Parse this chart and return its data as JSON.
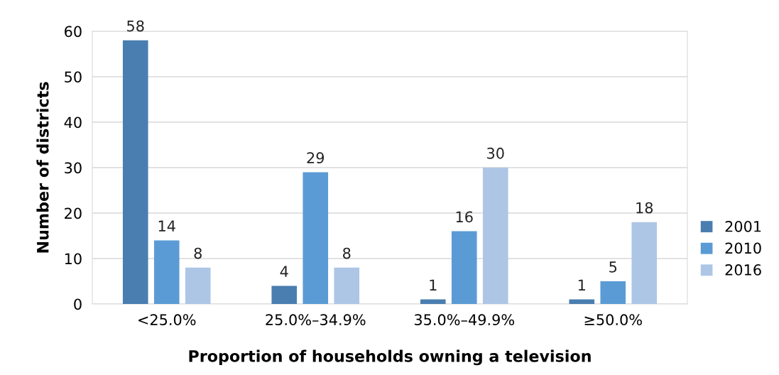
{
  "chart_data": {
    "type": "bar",
    "xlabel": "Proportion of households owning a television",
    "ylabel": "Number of districts",
    "categories": [
      "<25.0%",
      "25.0%–34.9%",
      "35.0%–49.9%",
      "≥50.0%"
    ],
    "series": [
      {
        "name": "2001",
        "color": "#4a7eb0",
        "values": [
          58,
          4,
          1,
          1
        ]
      },
      {
        "name": "2010",
        "color": "#5b9bd5",
        "values": [
          14,
          29,
          16,
          5
        ]
      },
      {
        "name": "2016",
        "color": "#adc6e6",
        "values": [
          8,
          8,
          30,
          18
        ]
      }
    ],
    "ylim": [
      0,
      60
    ],
    "yticks": [
      0,
      10,
      20,
      30,
      40,
      50,
      60
    ],
    "grid": "y",
    "legend": "right",
    "data_labels": true
  }
}
